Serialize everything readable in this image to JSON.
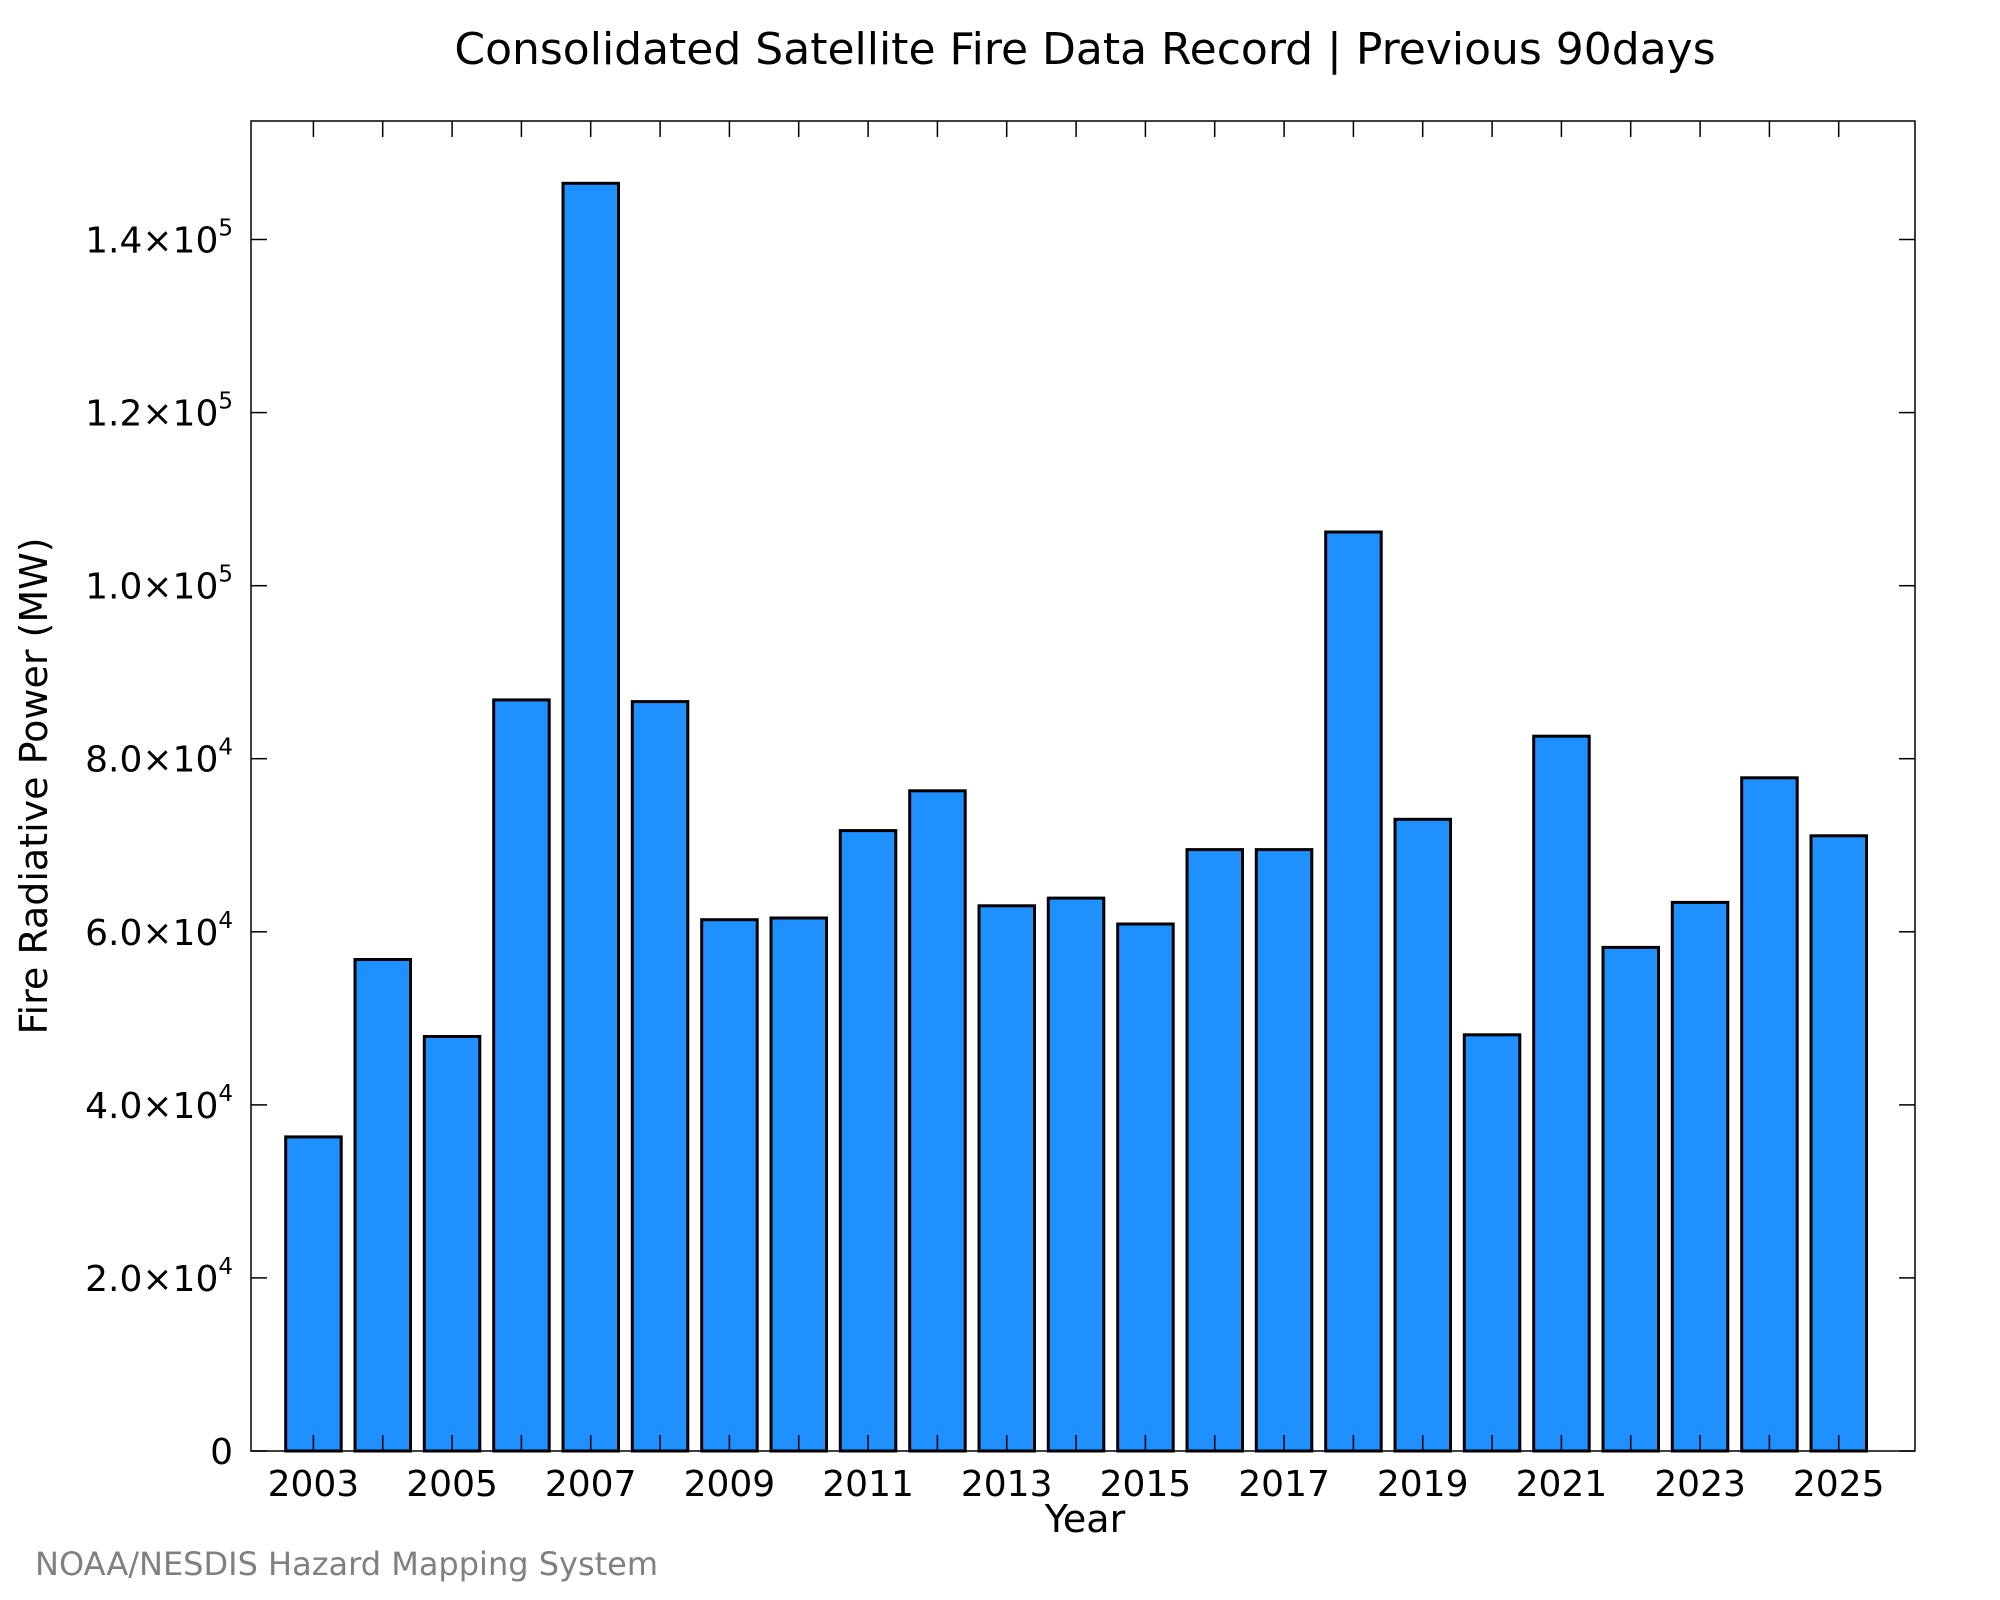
{
  "chart_data": {
    "type": "bar",
    "title": "Consolidated Satellite Fire Data Record | Previous 90days",
    "xlabel": "Year",
    "ylabel": "Fire Radiative Power (MW)",
    "credit": "NOAA/NESDIS Hazard Mapping System",
    "categories": [
      "2003",
      "2004",
      "2005",
      "2006",
      "2007",
      "2008",
      "2009",
      "2010",
      "2011",
      "2012",
      "2013",
      "2014",
      "2015",
      "2016",
      "2017",
      "2018",
      "2019",
      "2020",
      "2021",
      "2022",
      "2023",
      "2024",
      "2025"
    ],
    "values": [
      36300,
      56800,
      47900,
      86800,
      146500,
      86600,
      61400,
      61600,
      71700,
      76300,
      63000,
      63900,
      60900,
      69500,
      69500,
      106200,
      73000,
      48100,
      82600,
      58200,
      63400,
      77800,
      71100
    ],
    "x_tick_labels": [
      "2003",
      "2005",
      "2007",
      "2009",
      "2011",
      "2013",
      "2015",
      "2017",
      "2019",
      "2021",
      "2023",
      "2025"
    ],
    "y_ticks": [
      {
        "value": 0,
        "mantissa": "0",
        "exponent": ""
      },
      {
        "value": 20000,
        "mantissa": "2.0×10",
        "exponent": "4"
      },
      {
        "value": 40000,
        "mantissa": "4.0×10",
        "exponent": "4"
      },
      {
        "value": 60000,
        "mantissa": "6.0×10",
        "exponent": "4"
      },
      {
        "value": 80000,
        "mantissa": "8.0×10",
        "exponent": "4"
      },
      {
        "value": 100000,
        "mantissa": "1.0×10",
        "exponent": "5"
      },
      {
        "value": 120000,
        "mantissa": "1.2×10",
        "exponent": "5"
      },
      {
        "value": 140000,
        "mantissa": "1.4×10",
        "exponent": "5"
      }
    ],
    "ylim": [
      0,
      153700
    ],
    "xlim": [
      2002.1,
      2026.1
    ],
    "bar_color": "#1e90ff",
    "grid": false,
    "legend": "none"
  }
}
